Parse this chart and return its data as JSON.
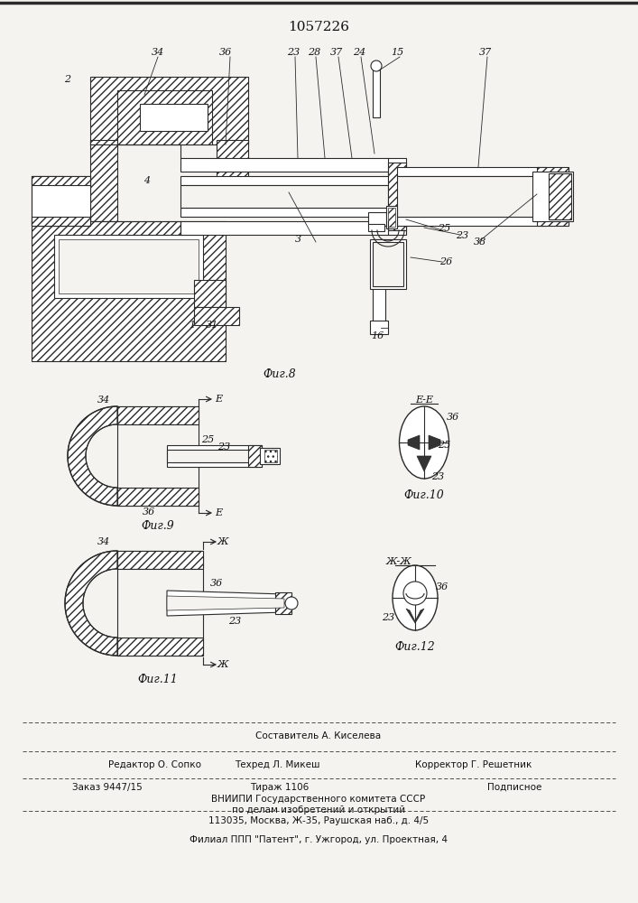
{
  "title": "1057226",
  "fig_width": 7.07,
  "fig_height": 10.0,
  "bg_color": "#f5f3ef",
  "fig8_caption": "Фиг.8",
  "fig9_caption": "Фиг.9",
  "fig10_caption": "Фиг.10",
  "fig11_caption": "Фиг.11",
  "fig12_caption": "Фиг.12"
}
